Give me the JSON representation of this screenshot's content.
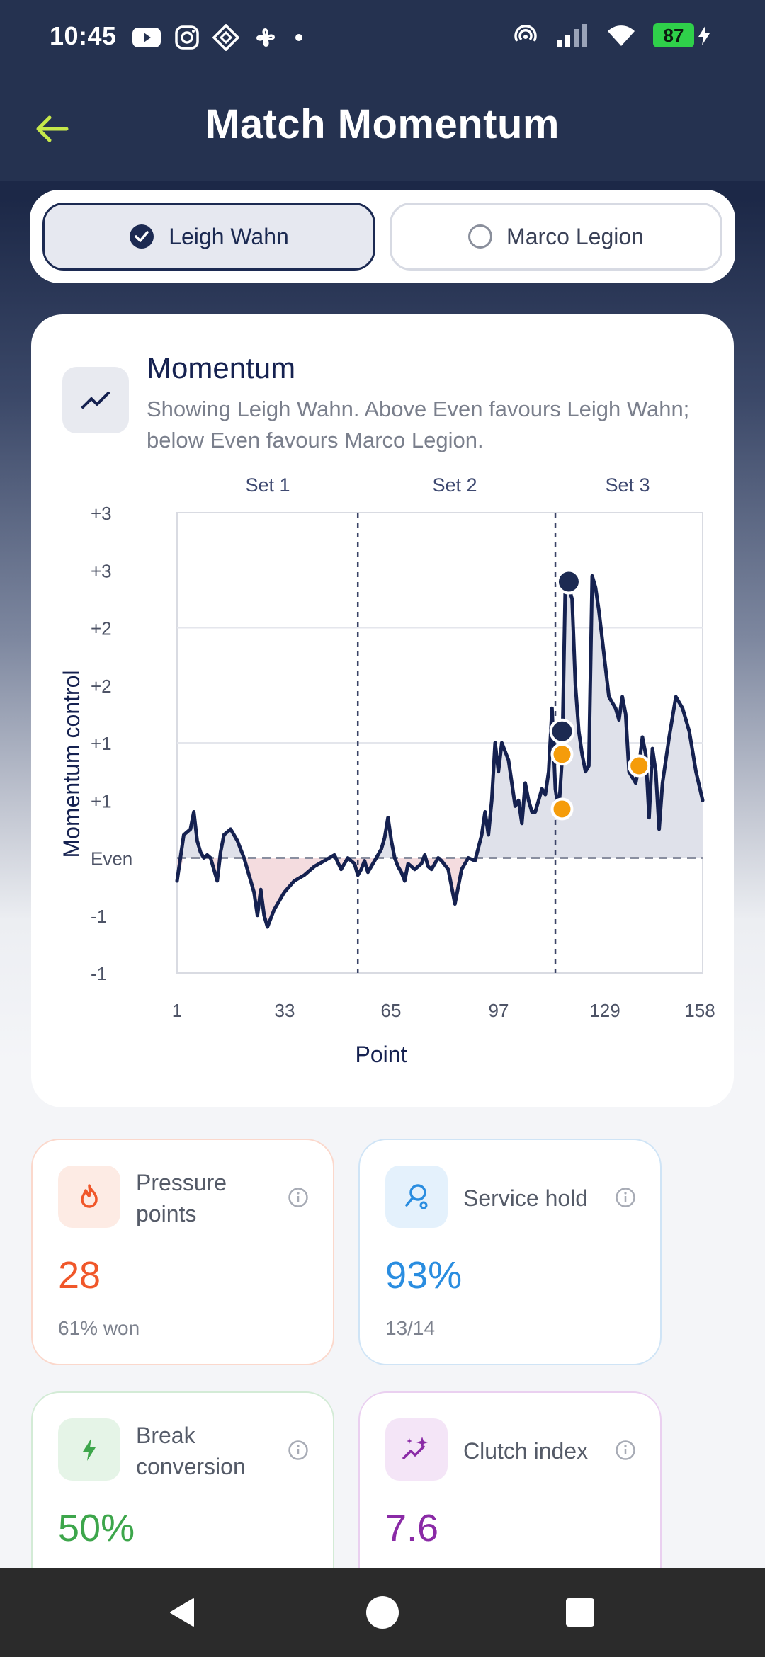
{
  "status_bar": {
    "time": "10:45",
    "battery": "87"
  },
  "app_bar": {
    "title": "Match Momentum"
  },
  "players": [
    {
      "name": "Leigh Wahn",
      "selected": true
    },
    {
      "name": "Marco Legion",
      "selected": false
    }
  ],
  "momentum_card": {
    "title": "Momentum",
    "subtitle": "Showing Leigh Wahn. Above Even favours Leigh Wahn; below Even favours Marco Legion.",
    "icon": "trend-line-icon"
  },
  "chart_data": {
    "type": "line",
    "title": "",
    "xlabel": "Point",
    "ylabel": "Momentum control",
    "x_ticks": [
      "1",
      "33",
      "65",
      "97",
      "129",
      "158"
    ],
    "y_tick_labels": [
      "+3",
      "+3",
      "+2",
      "+2",
      "+1",
      "+1",
      "Even",
      "-1",
      "-1"
    ],
    "xlim": [
      1,
      158
    ],
    "ylim": [
      -2,
      6
    ],
    "set_labels": [
      "Set 1",
      "Set 2",
      "Set 3"
    ],
    "set_boundaries": [
      55,
      114
    ],
    "series": [
      {
        "x": [
          1,
          3,
          5,
          6,
          7,
          8,
          9,
          10,
          11,
          12,
          13,
          14,
          15,
          17,
          19,
          21,
          23,
          24,
          25,
          26,
          27,
          28,
          29,
          30,
          31,
          33,
          36,
          39,
          42,
          45,
          48,
          50,
          52,
          54,
          55,
          56,
          57,
          58,
          60,
          62,
          63,
          64,
          65,
          66,
          67,
          68,
          69,
          70,
          72,
          74,
          75,
          76,
          77,
          78,
          79,
          80,
          82,
          84,
          86,
          88,
          90,
          92,
          93,
          94,
          95,
          96,
          97,
          98,
          100,
          102,
          103,
          104,
          105,
          106,
          107,
          108,
          109,
          110,
          111,
          112,
          113,
          114,
          115,
          116,
          117,
          118,
          119,
          120,
          121,
          122,
          123,
          124,
          125,
          126,
          127,
          128,
          129,
          130,
          131,
          132,
          133,
          134,
          135,
          136,
          137,
          138,
          139,
          140,
          141,
          142,
          143,
          144,
          145,
          146,
          148,
          150,
          152,
          154,
          156,
          158
        ],
        "y": [
          -0.4,
          0.4,
          0.5,
          0.8,
          0.3,
          0.1,
          0.0,
          0.05,
          0.0,
          -0.2,
          -0.4,
          0.1,
          0.4,
          0.5,
          0.3,
          0.0,
          -0.4,
          -0.6,
          -1.0,
          -0.55,
          -1.0,
          -1.2,
          -1.05,
          -0.9,
          -0.8,
          -0.6,
          -0.4,
          -0.3,
          -0.15,
          -0.05,
          0.05,
          -0.2,
          0.0,
          -0.1,
          -0.3,
          -0.2,
          -0.05,
          -0.25,
          -0.05,
          0.15,
          0.35,
          0.7,
          0.3,
          0.0,
          -0.15,
          -0.25,
          -0.4,
          -0.1,
          -0.2,
          -0.1,
          0.05,
          -0.15,
          -0.2,
          -0.1,
          0.0,
          -0.05,
          -0.2,
          -0.8,
          -0.2,
          0.0,
          -0.05,
          0.4,
          0.8,
          0.4,
          1.0,
          2.0,
          1.5,
          2.0,
          1.7,
          0.9,
          1.0,
          0.6,
          1.3,
          1.0,
          0.8,
          0.8,
          1.0,
          1.2,
          1.1,
          1.5,
          2.6,
          1.2,
          0.8,
          1.7,
          4.8,
          4.7,
          4.5,
          3.0,
          2.2,
          1.8,
          1.5,
          1.6,
          4.9,
          4.7,
          4.3,
          3.8,
          3.3,
          2.8,
          2.7,
          2.6,
          2.4,
          2.8,
          2.5,
          1.5,
          1.4,
          1.3,
          1.6,
          2.1,
          1.8,
          0.7,
          1.9,
          1.5,
          0.5,
          1.3,
          2.1,
          2.8,
          2.6,
          2.2,
          1.5,
          1.0
        ]
      }
    ],
    "markers": [
      {
        "x": 116,
        "y": 2.2,
        "color": "#1c2a52"
      },
      {
        "x": 118,
        "y": 4.8,
        "color": "#1c2a52"
      },
      {
        "x": 116,
        "y": 1.8,
        "color": "#f59c0a"
      },
      {
        "x": 116,
        "y": 0.85,
        "color": "#f59c0a"
      },
      {
        "x": 139,
        "y": 1.6,
        "color": "#f59c0a"
      }
    ],
    "grid": "horizontal",
    "colors": {
      "line": "#152150",
      "above_fill": "#dfe1ea",
      "below_fill": "#f4dcdf",
      "even_line": "#8a8fa0"
    }
  },
  "stats": [
    {
      "label": "Pressure points",
      "value": "28",
      "sub": "61% won",
      "icon": "flame-icon",
      "color": "#f0572a",
      "bg": "#fdebe4",
      "border": "#fbd8cc"
    },
    {
      "label": "Service hold",
      "value": "93%",
      "sub": "13/14",
      "icon": "racket-icon",
      "color": "#2a8de0",
      "bg": "#e4f1fc",
      "border": "#cfe4f6"
    },
    {
      "label": "Break conversion",
      "value": "50%",
      "sub": "",
      "icon": "bolt-icon",
      "color": "#3da64b",
      "bg": "#e5f4e7",
      "border": "#d3ebd6"
    },
    {
      "label": "Clutch index",
      "value": "7.6",
      "sub": "",
      "icon": "sparkle-icon",
      "color": "#8a2aa6",
      "bg": "#f4e5f7",
      "border": "#ead0f0"
    }
  ]
}
